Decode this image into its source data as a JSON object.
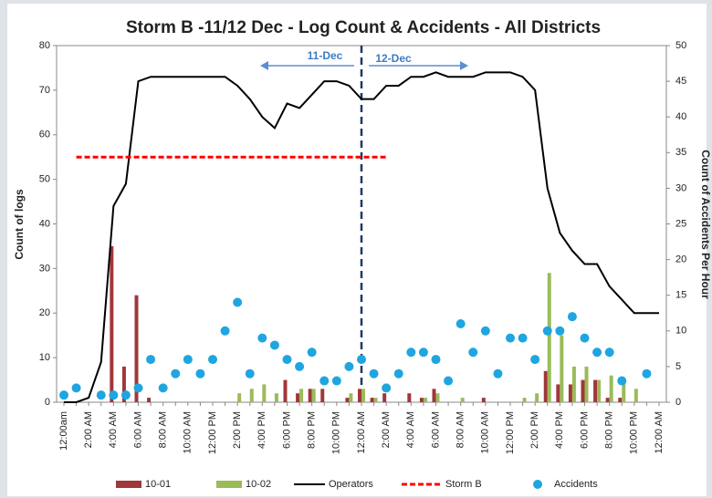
{
  "chart_data": {
    "type": "combo",
    "title": "Storm B -11/12 Dec - Log Count & Accidents - All Districts",
    "y_label": "Count of logs",
    "y2_label": "Count of Accidents Per Hour",
    "annotations": [
      "11-Dec",
      "12-Dec"
    ],
    "categories": [
      "12:00am",
      null,
      "2:00 AM",
      null,
      "4:00 AM",
      null,
      "6:00 AM",
      null,
      "8:00 AM",
      null,
      "10:00 AM",
      null,
      "12:00 PM",
      null,
      "2:00 PM",
      null,
      "4:00 PM",
      null,
      "6:00 PM",
      null,
      "8:00 PM",
      null,
      "10:00 PM",
      null,
      "12:00 AM",
      null,
      "2:00 AM",
      null,
      "4:00 AM",
      null,
      "6:00 AM",
      null,
      "8:00 AM",
      null,
      "10:00 AM",
      null,
      "12:00 PM",
      null,
      "2:00 PM",
      null,
      "4:00 PM",
      null,
      "6:00 PM",
      null,
      "8:00 PM",
      null,
      "10:00 PM",
      null,
      "12:00 AM"
    ],
    "ylim": [
      0,
      80
    ],
    "yticks": [
      0,
      10,
      20,
      30,
      40,
      50,
      60,
      70,
      80
    ],
    "y2lim": [
      0,
      50
    ],
    "y2ticks": [
      0,
      5,
      10,
      15,
      20,
      25,
      30,
      35,
      40,
      45,
      50
    ],
    "series": [
      {
        "name": "10-01",
        "type": "bar",
        "color": "#a0373a",
        "values": [
          0,
          0,
          0,
          0,
          35,
          8,
          24,
          1,
          0,
          0,
          0,
          0,
          0,
          0,
          0,
          0,
          0,
          0,
          5,
          2,
          3,
          3,
          0,
          1,
          3,
          1,
          2,
          0,
          2,
          1,
          3,
          0,
          0,
          0,
          1,
          0,
          0,
          0,
          0,
          7,
          4,
          4,
          5,
          5,
          1,
          1,
          0,
          0,
          0
        ]
      },
      {
        "name": "10-02",
        "type": "bar",
        "color": "#9bbb59",
        "values": [
          0,
          0,
          0,
          0,
          0,
          0,
          0,
          0,
          0,
          0,
          0,
          0,
          0,
          0,
          2,
          3,
          4,
          2,
          0,
          3,
          3,
          0,
          0,
          2,
          3,
          1,
          0,
          0,
          0,
          1,
          2,
          0,
          1,
          0,
          0,
          0,
          0,
          1,
          2,
          29,
          15,
          8,
          8,
          5,
          6,
          5,
          3,
          0,
          0
        ]
      },
      {
        "name": "Operators",
        "type": "line",
        "color": "#000000",
        "values": [
          0,
          0,
          1,
          9,
          44,
          49,
          72,
          73,
          73,
          73,
          73,
          73,
          73,
          73,
          71,
          68,
          64,
          61.5,
          67,
          66,
          69,
          72,
          72,
          71,
          68,
          68,
          71,
          71,
          73,
          73,
          74,
          73,
          73,
          73,
          74,
          74,
          74,
          73,
          70,
          48,
          38,
          34,
          31,
          31,
          26,
          23,
          20,
          20,
          20
        ]
      },
      {
        "name": "Storm B",
        "type": "dashed",
        "color": "#ff0000",
        "values": [
          null,
          55,
          55,
          55,
          55,
          55,
          55,
          55,
          55,
          55,
          55,
          55,
          55,
          55,
          55,
          55,
          55,
          55,
          55,
          55,
          55,
          55,
          55,
          55,
          55,
          55,
          55,
          null,
          null,
          null,
          null,
          null,
          null,
          null,
          null,
          null,
          null,
          null,
          null,
          null,
          null,
          null,
          null,
          null,
          null,
          null,
          null,
          null,
          null
        ]
      },
      {
        "name": "Accidents",
        "type": "dot",
        "axis": "y2",
        "color": "#1fa5e0",
        "values": [
          1,
          2,
          null,
          1,
          1,
          1,
          2,
          6,
          2,
          4,
          6,
          4,
          6,
          10,
          14,
          4,
          9,
          8,
          6,
          5,
          7,
          3,
          3,
          5,
          6,
          4,
          2,
          4,
          7,
          7,
          6,
          3,
          11,
          7,
          10,
          4,
          9,
          9,
          6,
          10,
          10,
          12,
          9,
          7,
          7,
          3,
          null,
          4,
          null
        ]
      }
    ]
  }
}
